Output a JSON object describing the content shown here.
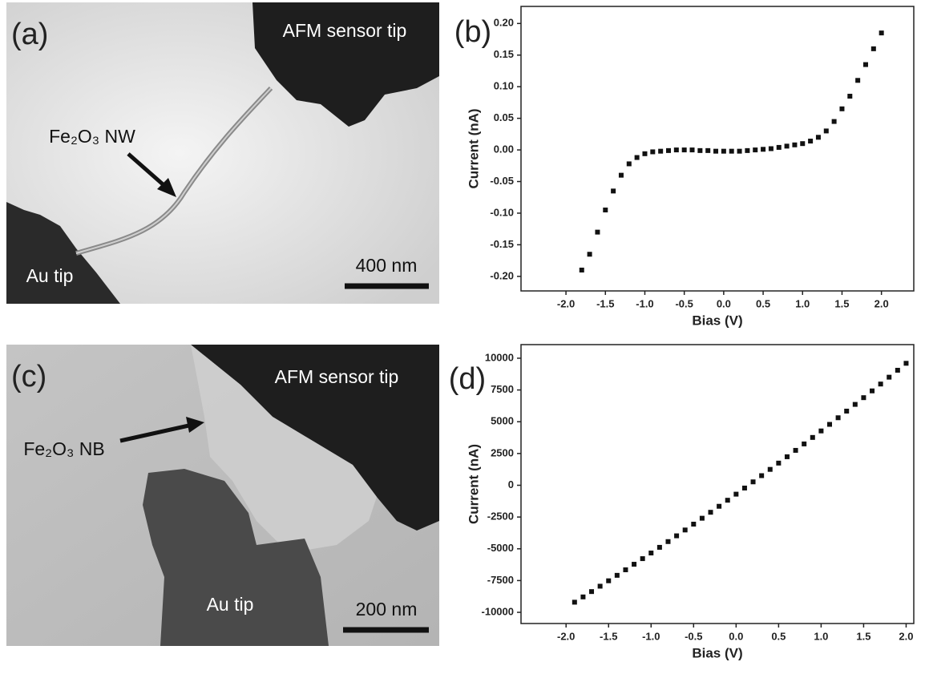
{
  "images": [
    {
      "panel": "(a)",
      "labels": [
        "AFM sensor tip",
        "Fe₂O₃ NW",
        "Au tip"
      ],
      "scale_bar": "400 nm"
    },
    {
      "panel": "(c)",
      "labels": [
        "AFM sensor tip",
        "Fe₂O₃ NB",
        "Au tip"
      ],
      "scale_bar": "200 nm"
    }
  ],
  "chart_data": [
    {
      "type": "scatter",
      "panel_label": "(b)",
      "x_label": "Bias (V)",
      "y_label": "Current (nA)",
      "color": "#111111",
      "x": [
        -1.8,
        -1.7,
        -1.6,
        -1.5,
        -1.4,
        -1.3,
        -1.2,
        -1.1,
        -1.0,
        -0.9,
        -0.8,
        -0.7,
        -0.6,
        -0.5,
        -0.4,
        -0.3,
        -0.2,
        -0.1,
        0.0,
        0.1,
        0.2,
        0.3,
        0.4,
        0.5,
        0.6,
        0.7,
        0.8,
        0.9,
        1.0,
        1.1,
        1.2,
        1.3,
        1.4,
        1.5,
        1.6,
        1.7,
        1.8,
        1.9,
        2.0
      ],
      "values": [
        -0.19,
        -0.165,
        -0.13,
        -0.095,
        -0.065,
        -0.04,
        -0.022,
        -0.012,
        -0.006,
        -0.003,
        -0.002,
        -0.001,
        0.0,
        0.0,
        0.0,
        -0.001,
        -0.001,
        -0.002,
        -0.002,
        -0.002,
        -0.002,
        -0.001,
        0.0,
        0.001,
        0.002,
        0.004,
        0.006,
        0.008,
        0.01,
        0.014,
        0.02,
        0.03,
        0.045,
        0.065,
        0.085,
        0.11,
        0.135,
        0.16,
        0.185
      ],
      "xlim": [
        -2.57,
        2.41
      ],
      "ylim": [
        -0.223,
        0.227
      ],
      "xticks": [
        {
          "value": -2.0,
          "label": "-2.0"
        },
        {
          "value": -1.5,
          "label": "-1.5"
        },
        {
          "value": -1.0,
          "label": "-1.0"
        },
        {
          "value": -0.5,
          "label": "-0.5"
        },
        {
          "value": 0,
          "label": "0.0"
        },
        {
          "value": 0.5,
          "label": "0.5"
        },
        {
          "value": 1.0,
          "label": "1.0"
        },
        {
          "value": 1.5,
          "label": "1.5"
        },
        {
          "value": 2.0,
          "label": "2.0"
        }
      ],
      "yticks": [
        {
          "value": -0.2,
          "label": "-0.20"
        },
        {
          "value": -0.15,
          "label": "-0.15"
        },
        {
          "value": -0.1,
          "label": "-0.10"
        },
        {
          "value": -0.05,
          "label": "-0.05"
        },
        {
          "value": 0,
          "label": "0.00"
        },
        {
          "value": 0.05,
          "label": "0.05"
        },
        {
          "value": 0.1,
          "label": "0.10"
        },
        {
          "value": 0.15,
          "label": "0.15"
        },
        {
          "value": 0.2,
          "label": "0.20"
        }
      ]
    },
    {
      "type": "scatter",
      "panel_label": "(d)",
      "x_label": "Bias (V)",
      "y_label": "Current (nA)",
      "color": "#111111",
      "x": [
        -1.9,
        -1.8,
        -1.7,
        -1.6,
        -1.5,
        -1.4,
        -1.3,
        -1.2,
        -1.1,
        -1.0,
        -0.9,
        -0.8,
        -0.7,
        -0.6,
        -0.5,
        -0.4,
        -0.3,
        -0.2,
        -0.1,
        0.0,
        0.1,
        0.2,
        0.3,
        0.4,
        0.5,
        0.6,
        0.7,
        0.8,
        0.9,
        1.0,
        1.1,
        1.2,
        1.3,
        1.4,
        1.5,
        1.6,
        1.7,
        1.8,
        1.9,
        2.0
      ],
      "values": [
        -9203,
        -8787,
        -8367,
        -7944,
        -7517,
        -7087,
        -6653,
        -6216,
        -5775,
        -5331,
        -4884,
        -4432,
        -3978,
        -3520,
        -3059,
        -2594,
        -2125,
        -1654,
        -1178,
        -700,
        -218,
        268,
        757,
        1250,
        1745,
        2244,
        2748,
        3254,
        3764,
        4277,
        4793,
        5314,
        5837,
        6365,
        6895,
        7429,
        7967,
        8507,
        9053,
        9600
      ],
      "xlim": [
        -2.53,
        2.09
      ],
      "ylim": [
        -10880,
        11070
      ],
      "xticks": [
        {
          "value": -2.0,
          "label": "-2.0"
        },
        {
          "value": -1.5,
          "label": "-1.5"
        },
        {
          "value": -1.0,
          "label": "-1.0"
        },
        {
          "value": -0.5,
          "label": "-0.5"
        },
        {
          "value": 0,
          "label": "0.0"
        },
        {
          "value": 0.5,
          "label": "0.5"
        },
        {
          "value": 1.0,
          "label": "1.0"
        },
        {
          "value": 1.5,
          "label": "1.5"
        },
        {
          "value": 2.0,
          "label": "2.0"
        }
      ],
      "yticks": [
        -10000,
        -7500,
        -5000,
        -2500,
        0,
        2500,
        5000,
        7500,
        10000
      ]
    }
  ]
}
